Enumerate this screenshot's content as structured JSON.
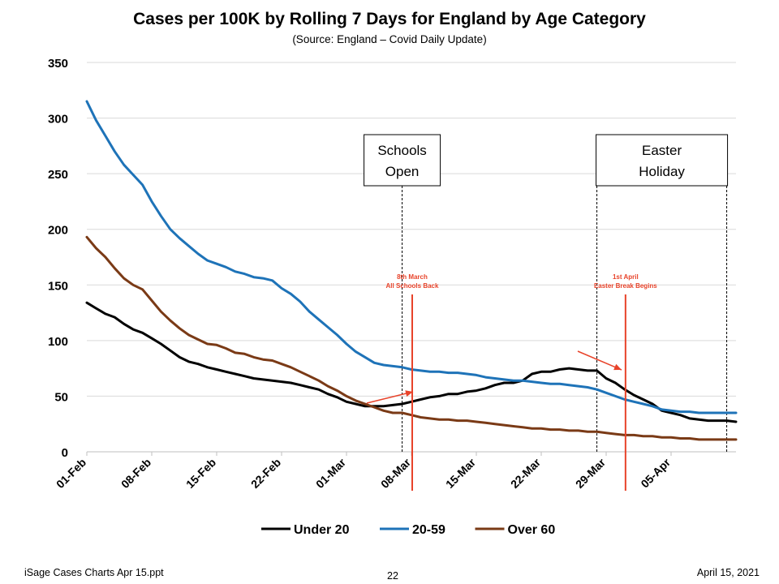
{
  "title": "Cases per 100K by Rolling 7 Days for England by Age Category",
  "subtitle": "(Source: England – Covid Daily Update)",
  "footer": {
    "left": "iSage  Cases Charts Apr 15.ppt",
    "center": "22",
    "right": "April 15, 2021"
  },
  "chart_data": {
    "type": "line",
    "ylim": [
      0,
      350
    ],
    "yticks": [
      0,
      50,
      100,
      150,
      200,
      250,
      300,
      350
    ],
    "x": [
      "01-Feb",
      "02-Feb",
      "03-Feb",
      "04-Feb",
      "05-Feb",
      "06-Feb",
      "07-Feb",
      "08-Feb",
      "09-Feb",
      "10-Feb",
      "11-Feb",
      "12-Feb",
      "13-Feb",
      "14-Feb",
      "15-Feb",
      "16-Feb",
      "17-Feb",
      "18-Feb",
      "19-Feb",
      "20-Feb",
      "21-Feb",
      "22-Feb",
      "23-Feb",
      "24-Feb",
      "25-Feb",
      "26-Feb",
      "27-Feb",
      "28-Feb",
      "01-Mar",
      "02-Mar",
      "03-Mar",
      "04-Mar",
      "05-Mar",
      "06-Mar",
      "07-Mar",
      "08-Mar",
      "09-Mar",
      "10-Mar",
      "11-Mar",
      "12-Mar",
      "13-Mar",
      "14-Mar",
      "15-Mar",
      "16-Mar",
      "17-Mar",
      "18-Mar",
      "19-Mar",
      "20-Mar",
      "21-Mar",
      "22-Mar",
      "23-Mar",
      "24-Mar",
      "25-Mar",
      "26-Mar",
      "27-Mar",
      "28-Mar",
      "29-Mar",
      "30-Mar",
      "31-Mar",
      "01-Apr",
      "02-Apr",
      "03-Apr",
      "04-Apr",
      "05-Apr",
      "06-Apr",
      "07-Apr",
      "08-Apr",
      "09-Apr",
      "10-Apr",
      "11-Apr",
      "12-Apr"
    ],
    "xtick_labels": [
      "01-Feb",
      "08-Feb",
      "15-Feb",
      "22-Feb",
      "01-Mar",
      "08-Mar",
      "15-Mar",
      "22-Mar",
      "29-Mar",
      "05-Apr"
    ],
    "series": [
      {
        "name": "Under 20",
        "color": "#000000",
        "values": [
          134,
          129,
          124,
          121,
          115,
          110,
          107,
          102,
          97,
          91,
          85,
          81,
          79,
          76,
          74,
          72,
          70,
          68,
          66,
          65,
          64,
          63,
          62,
          60,
          58,
          56,
          52,
          49,
          45,
          43,
          41,
          41,
          41,
          42,
          43,
          45,
          47,
          49,
          50,
          52,
          52,
          54,
          55,
          57,
          60,
          62,
          62,
          64,
          70,
          72,
          72,
          74,
          75,
          74,
          73,
          73,
          66,
          62,
          56,
          51,
          47,
          43,
          37,
          35,
          33,
          30,
          29,
          28,
          28,
          28,
          27
        ]
      },
      {
        "name": "20-59",
        "color": "#1E73B8",
        "values": [
          315,
          298,
          284,
          270,
          258,
          249,
          240,
          225,
          212,
          200,
          192,
          185,
          178,
          172,
          169,
          166,
          162,
          160,
          157,
          156,
          154,
          147,
          142,
          135,
          126,
          119,
          112,
          105,
          97,
          90,
          85,
          80,
          78,
          77,
          76,
          74,
          73,
          72,
          72,
          71,
          71,
          70,
          69,
          67,
          66,
          65,
          64,
          64,
          63,
          62,
          61,
          61,
          60,
          59,
          58,
          56,
          53,
          50,
          47,
          45,
          43,
          41,
          38,
          37,
          36,
          36,
          35,
          35,
          35,
          35,
          35
        ]
      },
      {
        "name": "Over 60",
        "color": "#7A3A16",
        "values": [
          193,
          183,
          175,
          165,
          156,
          150,
          146,
          136,
          126,
          118,
          111,
          105,
          101,
          97,
          96,
          93,
          89,
          88,
          85,
          83,
          82,
          79,
          76,
          72,
          68,
          64,
          59,
          55,
          50,
          46,
          43,
          40,
          37,
          35,
          35,
          33,
          31,
          30,
          29,
          29,
          28,
          28,
          27,
          26,
          25,
          24,
          23,
          22,
          21,
          21,
          20,
          20,
          19,
          19,
          18,
          18,
          17,
          16,
          15,
          15,
          14,
          14,
          13,
          13,
          12,
          12,
          11,
          11,
          11,
          11,
          11
        ]
      }
    ],
    "markers": [
      {
        "label": "Schools\nOpen",
        "at_date": "07-Mar",
        "boxed": true
      },
      {
        "label": "Easter\nHoliday",
        "at_date": "28-Mar",
        "boxed": true,
        "end_date": "11-Apr"
      }
    ],
    "annotations": [
      {
        "text": "8th March\nAll Schools Back",
        "color": "#E8432A",
        "at_date": "08-Mar"
      },
      {
        "text": "1st April\nEaster Break Begins",
        "color": "#E8432A",
        "at_date": "31-Mar"
      }
    ],
    "legend_position": "bottom",
    "grid": "horizontal"
  }
}
